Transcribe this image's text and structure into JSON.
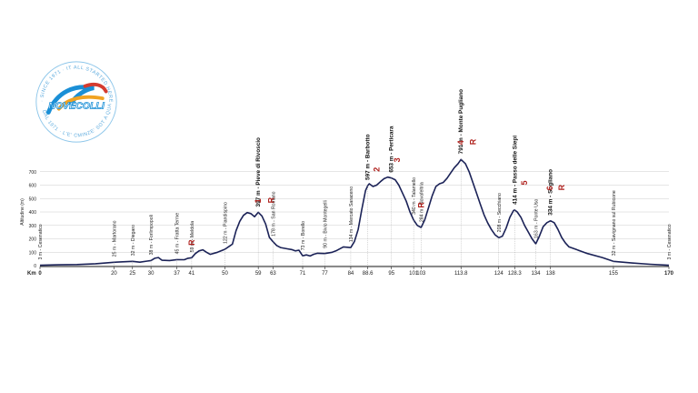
{
  "logo": {
    "ring_text_top": "· SINCE 1971 · IT ALL STARTED HERE ·",
    "ring_text_bottom": "DAL 1971 · L'E' CMINZE' SOT A QUA",
    "name": "NOVECOLLI",
    "colors": {
      "ring": "#8fc7ea",
      "accent": "#1a8fd6",
      "orange": "#f0a323",
      "red": "#d53b2f"
    }
  },
  "colors": {
    "profile": "#1b2257",
    "grid": "#cccccc",
    "marker": "#b0231f"
  },
  "chart_data": {
    "type": "area",
    "title": "",
    "xlabel": "Km",
    "ylabel": "Altitudine (m)",
    "xlim": [
      0,
      170
    ],
    "ylim": [
      0,
      800
    ],
    "yticks": [
      0,
      100,
      200,
      300,
      400,
      500,
      600,
      700
    ],
    "xticks": [
      0,
      20,
      25,
      30,
      37,
      41,
      50,
      59,
      63,
      71,
      77,
      84,
      88.6,
      95,
      101,
      103,
      113.8,
      124,
      128.3,
      134,
      138,
      155,
      170
    ],
    "xtick_labels": [
      "0",
      "20",
      "25",
      "30",
      "37",
      "41",
      "50",
      "59",
      "63",
      "71",
      "77",
      "84",
      "88.6",
      "95",
      "101",
      "103",
      "113.8",
      "124",
      "128.3",
      "134",
      "138",
      "155",
      "170"
    ],
    "profile": [
      [
        0,
        3
      ],
      [
        5,
        6
      ],
      [
        10,
        8
      ],
      [
        15,
        14
      ],
      [
        20,
        25
      ],
      [
        23,
        29
      ],
      [
        25,
        32
      ],
      [
        27,
        26
      ],
      [
        29,
        34
      ],
      [
        30,
        38
      ],
      [
        31,
        55
      ],
      [
        32,
        60
      ],
      [
        33,
        40
      ],
      [
        35,
        38
      ],
      [
        37,
        45
      ],
      [
        39,
        44
      ],
      [
        40,
        55
      ],
      [
        41,
        59
      ],
      [
        42,
        90
      ],
      [
        43,
        110
      ],
      [
        44,
        118
      ],
      [
        45,
        100
      ],
      [
        46,
        84
      ],
      [
        48,
        100
      ],
      [
        50,
        122
      ],
      [
        52,
        160
      ],
      [
        53,
        260
      ],
      [
        54,
        330
      ],
      [
        55,
        375
      ],
      [
        56,
        395
      ],
      [
        57,
        388
      ],
      [
        58,
        365
      ],
      [
        59,
        397
      ],
      [
        60,
        370
      ],
      [
        61,
        310
      ],
      [
        62,
        210
      ],
      [
        63,
        178
      ],
      [
        64,
        150
      ],
      [
        65,
        135
      ],
      [
        67,
        125
      ],
      [
        68,
        120
      ],
      [
        69,
        110
      ],
      [
        70,
        115
      ],
      [
        71,
        73
      ],
      [
        72,
        80
      ],
      [
        73,
        72
      ],
      [
        74,
        85
      ],
      [
        75,
        92
      ],
      [
        77,
        90
      ],
      [
        79,
        100
      ],
      [
        80,
        110
      ],
      [
        82,
        140
      ],
      [
        84,
        134
      ],
      [
        85,
        180
      ],
      [
        86,
        270
      ],
      [
        87,
        420
      ],
      [
        88,
        560
      ],
      [
        88.6,
        597
      ],
      [
        89,
        610
      ],
      [
        90,
        590
      ],
      [
        91,
        600
      ],
      [
        92,
        625
      ],
      [
        93,
        648
      ],
      [
        94,
        660
      ],
      [
        95,
        653
      ],
      [
        96,
        640
      ],
      [
        97,
        600
      ],
      [
        98,
        540
      ],
      [
        99,
        480
      ],
      [
        100,
        400
      ],
      [
        101,
        340
      ],
      [
        102,
        300
      ],
      [
        103,
        284
      ],
      [
        104,
        340
      ],
      [
        105,
        430
      ],
      [
        106,
        520
      ],
      [
        107,
        590
      ],
      [
        108,
        610
      ],
      [
        109,
        620
      ],
      [
        110,
        650
      ],
      [
        111,
        690
      ],
      [
        112,
        730
      ],
      [
        113,
        760
      ],
      [
        113.8,
        791
      ],
      [
        115,
        760
      ],
      [
        116,
        700
      ],
      [
        117,
        620
      ],
      [
        118,
        540
      ],
      [
        119,
        460
      ],
      [
        120,
        380
      ],
      [
        121,
        320
      ],
      [
        122,
        270
      ],
      [
        123,
        230
      ],
      [
        124,
        208
      ],
      [
        125,
        220
      ],
      [
        126,
        280
      ],
      [
        127,
        360
      ],
      [
        128,
        410
      ],
      [
        128.3,
        414
      ],
      [
        129,
        400
      ],
      [
        130,
        360
      ],
      [
        131,
        300
      ],
      [
        132,
        250
      ],
      [
        133,
        200
      ],
      [
        134,
        163
      ],
      [
        135,
        220
      ],
      [
        136,
        290
      ],
      [
        137,
        320
      ],
      [
        138,
        334
      ],
      [
        139,
        320
      ],
      [
        140,
        270
      ],
      [
        141,
        210
      ],
      [
        142,
        170
      ],
      [
        143,
        140
      ],
      [
        145,
        120
      ],
      [
        148,
        90
      ],
      [
        152,
        60
      ],
      [
        155,
        32
      ],
      [
        160,
        20
      ],
      [
        165,
        10
      ],
      [
        170,
        3
      ]
    ],
    "annotations": [
      {
        "x": 0,
        "y": 3,
        "text": "3 m - Cesenatico",
        "bold": false
      },
      {
        "x": 20,
        "y": 25,
        "text": "25 m - Martorano",
        "bold": false
      },
      {
        "x": 25,
        "y": 32,
        "text": "32 m - Diegaro",
        "bold": false
      },
      {
        "x": 30,
        "y": 38,
        "text": "38 m - Forlimpopoli",
        "bold": false
      },
      {
        "x": 37,
        "y": 45,
        "text": "45 m - Fratta Terme",
        "bold": false
      },
      {
        "x": 41,
        "y": 59,
        "text": "59 m - Meldola",
        "bold": false
      },
      {
        "x": 50,
        "y": 122,
        "text": "122 m - Piandispino",
        "bold": false
      },
      {
        "x": 59,
        "y": 397,
        "text": "397 m - Pieve di Rivoscio",
        "bold": true
      },
      {
        "x": 63,
        "y": 178,
        "text": "178 m - San Romano",
        "bold": false
      },
      {
        "x": 71,
        "y": 73,
        "text": "73 m - Borello",
        "bold": false
      },
      {
        "x": 77,
        "y": 90,
        "text": "90 m - Bivio Montegelli",
        "bold": false
      },
      {
        "x": 84,
        "y": 134,
        "text": "134 m - Mercato Saraceno",
        "bold": false
      },
      {
        "x": 88.6,
        "y": 597,
        "text": "597 m - Barbotto",
        "bold": true
      },
      {
        "x": 95,
        "y": 653,
        "text": "653 m - Perticara",
        "bold": true
      },
      {
        "x": 101,
        "y": 340,
        "text": "340 m - Talamello",
        "bold": false
      },
      {
        "x": 103,
        "y": 284,
        "text": "284 m - Novafeltria",
        "bold": false
      },
      {
        "x": 113.8,
        "y": 791,
        "text": "791 m - Monte Pugliano",
        "bold": true
      },
      {
        "x": 124,
        "y": 208,
        "text": "208 m - Secchiano",
        "bold": false
      },
      {
        "x": 128.3,
        "y": 414,
        "text": "414 m - Passo delle Siepi",
        "bold": true
      },
      {
        "x": 134,
        "y": 163,
        "text": "163 m - Ponte Uso",
        "bold": false
      },
      {
        "x": 138,
        "y": 334,
        "text": "334 m - Sogliano",
        "bold": true
      },
      {
        "x": 155,
        "y": 32,
        "text": "32 m - Savignano sul Rubicone",
        "bold": false
      },
      {
        "x": 170,
        "y": 3,
        "text": "3 m - Cesenatico",
        "bold": false
      }
    ],
    "climb_markers": [
      {
        "x": 41,
        "y": 150,
        "label": "R"
      },
      {
        "x": 59,
        "y": 465,
        "label": "1"
      },
      {
        "x": 62.5,
        "y": 465,
        "label": "R"
      },
      {
        "x": 91,
        "y": 700,
        "label": "2"
      },
      {
        "x": 96.5,
        "y": 770,
        "label": "3"
      },
      {
        "x": 103,
        "y": 430,
        "label": "R"
      },
      {
        "x": 113.8,
        "y": 900,
        "label": "4"
      },
      {
        "x": 117,
        "y": 900,
        "label": "R"
      },
      {
        "x": 131,
        "y": 600,
        "label": "5"
      },
      {
        "x": 137.8,
        "y": 560,
        "label": "6"
      },
      {
        "x": 141,
        "y": 560,
        "label": "R"
      }
    ]
  }
}
